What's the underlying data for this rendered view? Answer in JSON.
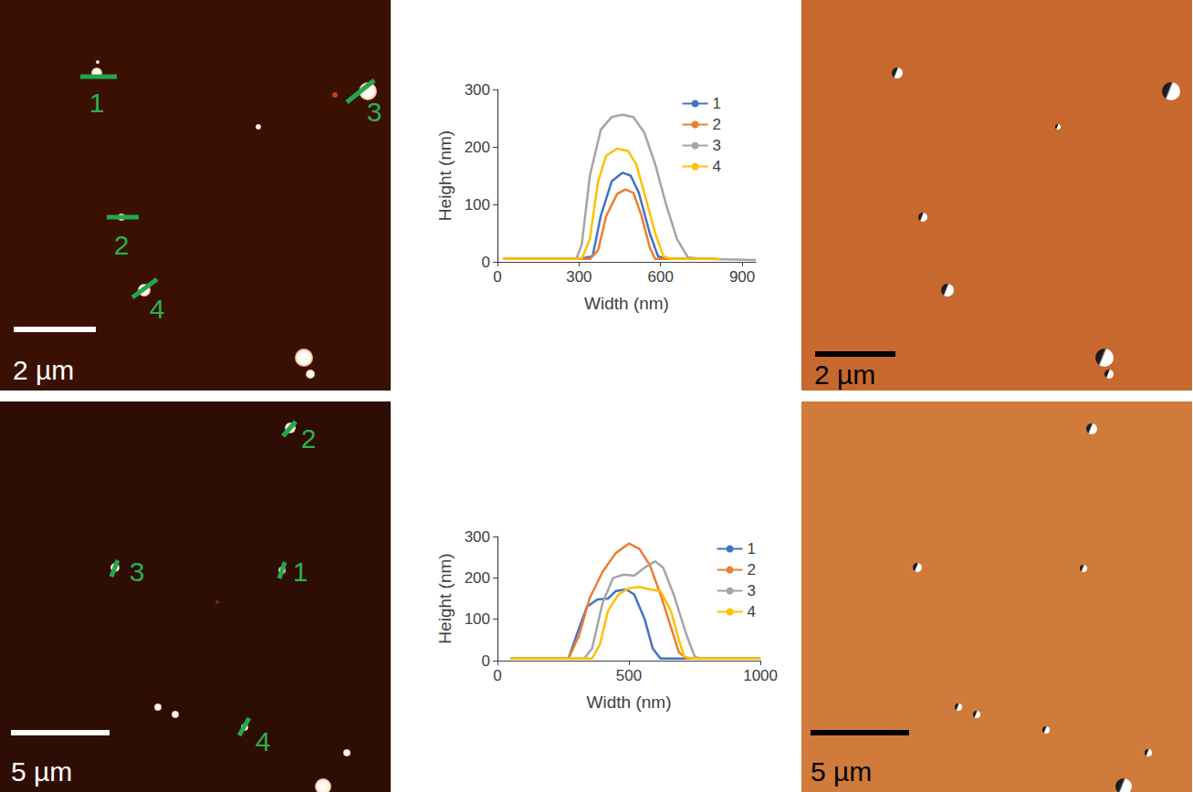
{
  "chart_data": [
    {
      "type": "line",
      "xlabel": "Width (nm)",
      "ylabel": "Height (nm)",
      "xlim": [
        0,
        950
      ],
      "xticks": [
        0,
        300,
        600,
        900
      ],
      "ylim": [
        0,
        300
      ],
      "yticks": [
        0,
        100,
        200,
        300
      ],
      "grid": false,
      "legend": "upper right",
      "series": [
        {
          "name": "1",
          "color": "#4472c4",
          "x": [
            20,
            300,
            350,
            380,
            420,
            460,
            490,
            520,
            560,
            590,
            620,
            800
          ],
          "values": [
            5,
            5,
            10,
            80,
            140,
            155,
            150,
            120,
            50,
            10,
            5,
            5
          ]
        },
        {
          "name": "2",
          "color": "#ed7d31",
          "x": [
            20,
            340,
            370,
            400,
            440,
            470,
            500,
            530,
            560,
            580,
            800
          ],
          "values": [
            5,
            5,
            20,
            80,
            118,
            126,
            120,
            80,
            25,
            5,
            5
          ]
        },
        {
          "name": "3",
          "color": "#a5a5a5",
          "x": [
            20,
            290,
            310,
            340,
            380,
            420,
            460,
            500,
            540,
            580,
            620,
            660,
            700,
            750,
            950
          ],
          "values": [
            5,
            5,
            30,
            150,
            230,
            252,
            256,
            252,
            225,
            170,
            100,
            40,
            8,
            5,
            3
          ]
        },
        {
          "name": "4",
          "color": "#ffc000",
          "x": [
            20,
            310,
            340,
            370,
            400,
            440,
            480,
            510,
            540,
            580,
            610,
            640,
            820
          ],
          "values": [
            5,
            5,
            40,
            140,
            185,
            197,
            193,
            170,
            120,
            50,
            10,
            5,
            5
          ]
        }
      ]
    },
    {
      "type": "line",
      "xlabel": "Width (nm)",
      "ylabel": "Height (nm)",
      "xlim": [
        0,
        1000
      ],
      "xticks": [
        0,
        500,
        1000
      ],
      "ylim": [
        0,
        300
      ],
      "yticks": [
        0,
        100,
        200,
        300
      ],
      "grid": false,
      "legend": "upper right",
      "series": [
        {
          "name": "1",
          "color": "#4472c4",
          "x": [
            50,
            270,
            300,
            340,
            380,
            420,
            450,
            490,
            520,
            560,
            590,
            620,
            1000
          ],
          "values": [
            5,
            5,
            60,
            130,
            148,
            150,
            168,
            172,
            160,
            100,
            30,
            5,
            5
          ]
        },
        {
          "name": "2",
          "color": "#ed7d31",
          "x": [
            50,
            270,
            310,
            350,
            400,
            450,
            500,
            540,
            580,
            620,
            660,
            690,
            720,
            1000
          ],
          "values": [
            5,
            5,
            60,
            150,
            215,
            260,
            283,
            270,
            230,
            160,
            80,
            20,
            5,
            5
          ]
        },
        {
          "name": "3",
          "color": "#a5a5a5",
          "x": [
            50,
            330,
            360,
            400,
            440,
            480,
            520,
            560,
            600,
            630,
            670,
            720,
            750,
            770,
            1000
          ],
          "values": [
            5,
            5,
            30,
            140,
            200,
            208,
            205,
            225,
            240,
            225,
            160,
            60,
            10,
            5,
            5
          ]
        },
        {
          "name": "4",
          "color": "#ffc000",
          "x": [
            50,
            360,
            390,
            420,
            460,
            500,
            540,
            580,
            620,
            660,
            690,
            710,
            740,
            1000
          ],
          "values": [
            5,
            5,
            40,
            120,
            160,
            175,
            178,
            172,
            168,
            120,
            50,
            10,
            5,
            5
          ]
        }
      ]
    }
  ],
  "images": [
    {
      "scale_bar": "2 µm",
      "profile_labels": [
        "1",
        "2",
        "3",
        "4"
      ]
    },
    {
      "scale_bar": "2 µm"
    },
    {
      "scale_bar": "5 µm",
      "profile_labels": [
        "1",
        "2",
        "3",
        "4"
      ]
    },
    {
      "scale_bar": "5 µm"
    }
  ]
}
